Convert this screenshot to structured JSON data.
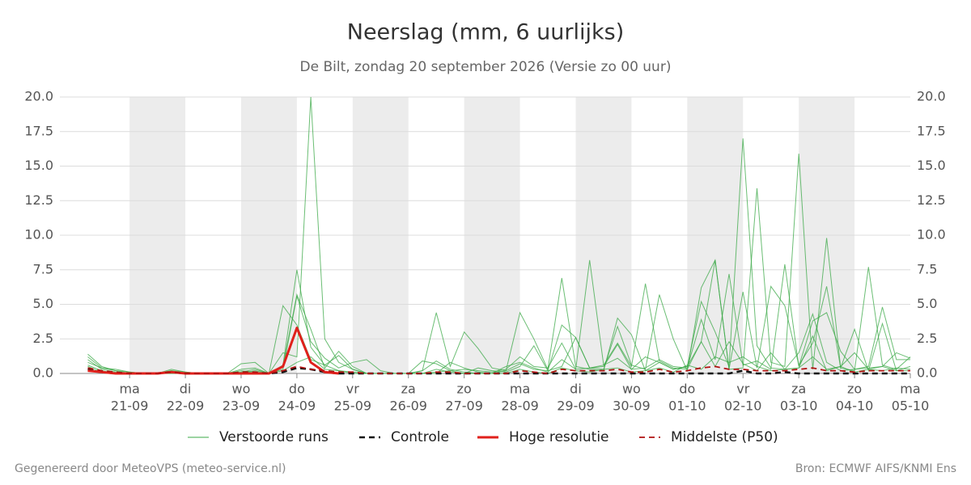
{
  "chart_data": {
    "type": "line",
    "title": "Neerslag (mm, 6 uurlijks)",
    "subtitle": "De Bilt, zondag 20 september 2026 (Versie zo 00 uur)",
    "x": [
      -0.75,
      -0.5,
      -0.25,
      0,
      0.25,
      0.5,
      0.75,
      1,
      1.25,
      1.5,
      1.75,
      2,
      2.25,
      2.5,
      2.75,
      3,
      3.25,
      3.5,
      3.75,
      4,
      4.25,
      4.5,
      4.75,
      5,
      5.25,
      5.5,
      5.75,
      6,
      6.25,
      6.5,
      6.75,
      7,
      7.25,
      7.5,
      7.75,
      8,
      8.25,
      8.5,
      8.75,
      9,
      9.25,
      9.5,
      9.75,
      10,
      10.25,
      10.5,
      10.75,
      11,
      11.25,
      11.5,
      11.75,
      12,
      12.25,
      12.5,
      12.75,
      13,
      13.25,
      13.5,
      13.75,
      14
    ],
    "xlim": [
      -1.25,
      14
    ],
    "xticks": [
      {
        "value": 0,
        "label": "ma",
        "date": "21-09"
      },
      {
        "value": 1,
        "label": "di",
        "date": "22-09"
      },
      {
        "value": 2,
        "label": "wo",
        "date": "23-09"
      },
      {
        "value": 3,
        "label": "do",
        "date": "24-09"
      },
      {
        "value": 4,
        "label": "vr",
        "date": "25-09"
      },
      {
        "value": 5,
        "label": "za",
        "date": "26-09"
      },
      {
        "value": 6,
        "label": "zo",
        "date": "27-09"
      },
      {
        "value": 7,
        "label": "ma",
        "date": "28-09"
      },
      {
        "value": 8,
        "label": "di",
        "date": "29-09"
      },
      {
        "value": 9,
        "label": "wo",
        "date": "30-09"
      },
      {
        "value": 10,
        "label": "do",
        "date": "01-10"
      },
      {
        "value": 11,
        "label": "vr",
        "date": "02-10"
      },
      {
        "value": 12,
        "label": "za",
        "date": "03-10"
      },
      {
        "value": 13,
        "label": "zo",
        "date": "04-10"
      },
      {
        "value": 14,
        "label": "ma",
        "date": "05-10"
      }
    ],
    "ylim": [
      0,
      20
    ],
    "yticks": [
      {
        "value": 0,
        "label": "0.0"
      },
      2.5,
      {
        "value": 5,
        "label": "5.0"
      },
      7.5,
      {
        "value": 10,
        "label": "10.0"
      },
      12.5,
      {
        "value": 15,
        "label": "15.0"
      },
      17.5,
      {
        "value": 20,
        "label": "20.0"
      }
    ],
    "grid": true,
    "ensemble": {
      "name": "Verstoorde runs",
      "color": "#3aa845",
      "members": [
        [
          1.4,
          0.5,
          0.2,
          0.1,
          0,
          0,
          0.3,
          0.1,
          0,
          0,
          0,
          0.7,
          0.8,
          0,
          1.5,
          1.2,
          20.0,
          2.5,
          0.8,
          0.3,
          0,
          0,
          0,
          0,
          0.2,
          4.4,
          0.5,
          3.0,
          1.8,
          0.4,
          0.2,
          4.4,
          2.5,
          0.3,
          6.9,
          0.5,
          0.3,
          0.2,
          4.0,
          2.8,
          0.2,
          0.8,
          0.3,
          0.5,
          5.2,
          3.0,
          0.5,
          17.0,
          2.0,
          0.4,
          0.3,
          1.5,
          4.3,
          0.8,
          0.2,
          0.3,
          0.5,
          4.8,
          1.0,
          1.0
        ],
        [
          1.0,
          0.3,
          0.1,
          0,
          0,
          0,
          0.2,
          0,
          0,
          0,
          0,
          0.3,
          0.4,
          0,
          4.9,
          3.5,
          1.0,
          0.6,
          0.2,
          0,
          0,
          0,
          0,
          0,
          0.9,
          0.7,
          0.2,
          0.3,
          0.2,
          0.1,
          0.3,
          1.2,
          0.5,
          0.4,
          2.2,
          0.3,
          8.2,
          0.6,
          2.2,
          0.5,
          6.5,
          0.9,
          0.4,
          0.3,
          2.3,
          8.2,
          0.3,
          0.4,
          13.4,
          0.8,
          0.5,
          15.9,
          0.3,
          9.8,
          0.4,
          0.2,
          7.7,
          0.6,
          0.3,
          1.2
        ],
        [
          0.8,
          0.4,
          0.2,
          0,
          0,
          0,
          0,
          0,
          0,
          0,
          0,
          0,
          0.2,
          0,
          0.6,
          7.5,
          1.9,
          0.6,
          1.3,
          0.3,
          0,
          0,
          0,
          0,
          0,
          0.3,
          0.1,
          0,
          0.4,
          0.2,
          0.1,
          0.5,
          2.0,
          0.2,
          3.5,
          2.6,
          0.4,
          0.3,
          3.4,
          0.6,
          0.3,
          5.7,
          2.5,
          0.2,
          6.2,
          8.2,
          0.3,
          5.9,
          0.4,
          6.3,
          4.9,
          0.6,
          2.2,
          6.3,
          0.4,
          3.2,
          0.2,
          3.6,
          0.2,
          0.5
        ],
        [
          0.6,
          0.2,
          0,
          0,
          0,
          0,
          0.1,
          0,
          0,
          0,
          0,
          0.2,
          0.1,
          0,
          0.3,
          5.6,
          2.3,
          1.1,
          0.4,
          0.8,
          1.0,
          0.2,
          0,
          0,
          0,
          0,
          0.8,
          0.4,
          0.1,
          0,
          0.2,
          0.7,
          0.3,
          0.2,
          0.5,
          2.6,
          0.4,
          0.6,
          1.1,
          0.3,
          0.4,
          1.0,
          0.5,
          0.4,
          3.9,
          1.0,
          7.2,
          0.6,
          0.9,
          0.3,
          7.9,
          0.5,
          3.8,
          4.4,
          1.6,
          0.3,
          0.4,
          0.5,
          1.5,
          1.1
        ],
        [
          1.2,
          0.4,
          0.3,
          0.1,
          0,
          0,
          0.2,
          0.1,
          0,
          0,
          0,
          0.1,
          0.3,
          0,
          0.5,
          5.7,
          3.2,
          0.4,
          1.6,
          0.5,
          0,
          0,
          0,
          0,
          0.2,
          0.9,
          0.3,
          0.1,
          0,
          0,
          0.5,
          0.8,
          0.4,
          0.1,
          1.0,
          0.3,
          0.4,
          0.5,
          2.1,
          0.3,
          1.2,
          0.8,
          0.3,
          0.5,
          2.3,
          0.5,
          2.3,
          0.7,
          0.2,
          1.5,
          0.3,
          0.4,
          2.7,
          0.2,
          0.5,
          1.5,
          0.3,
          0.2,
          0.4,
          0.3
        ],
        [
          0.5,
          0.1,
          0,
          0,
          0,
          0,
          0,
          0,
          0,
          0,
          0,
          0,
          0,
          0,
          0.2,
          0.8,
          1.2,
          0.3,
          0.2,
          0.1,
          0,
          0,
          0,
          0,
          0,
          0.1,
          0.2,
          0,
          0,
          0,
          0,
          0.3,
          0.1,
          0,
          0.4,
          0.2,
          0.1,
          0.3,
          0.4,
          0.1,
          0.2,
          0.4,
          0.1,
          0.6,
          0.3,
          1.2,
          0.8,
          1.2,
          0.5,
          0.2,
          0.3,
          0.4,
          1.2,
          0.3,
          0.5,
          0.1,
          0.3,
          0.5,
          0.2,
          0.2
        ]
      ]
    },
    "series": [
      {
        "name": "Controle",
        "color": "#111111",
        "dashed": true,
        "width": 2.5,
        "values": [
          0.3,
          0.1,
          0,
          0,
          0,
          0,
          0.1,
          0,
          0,
          0,
          0,
          0,
          0,
          0,
          0.1,
          0.4,
          0.3,
          0.1,
          0,
          0,
          0,
          0,
          0,
          0,
          0,
          0,
          0,
          0,
          0,
          0,
          0,
          0,
          0,
          0,
          0,
          0,
          0,
          0,
          0,
          0,
          0,
          0,
          0,
          0,
          0,
          0,
          0,
          0.2,
          0,
          0,
          0.1,
          0,
          0,
          0,
          0,
          0,
          0,
          0,
          0,
          0
        ]
      },
      {
        "name": "Hoge resolutie",
        "color": "#e0201b",
        "dashed": false,
        "width": 3,
        "values": [
          0.2,
          0.1,
          0,
          0,
          0,
          0,
          0.1,
          0,
          0,
          0,
          0,
          0,
          0,
          0,
          0.5,
          3.3,
          0.8,
          0.1,
          0,
          null,
          null,
          null,
          null,
          null,
          null,
          null,
          null,
          null,
          null,
          null,
          null,
          null,
          null,
          null,
          null,
          null,
          null,
          null,
          null,
          null,
          null,
          null,
          null,
          null,
          null,
          null,
          null,
          null,
          null,
          null,
          null,
          null,
          null,
          null,
          null,
          null,
          null,
          null,
          null,
          null
        ]
      },
      {
        "name": "Middelste (P50)",
        "color": "#b01010",
        "dashed": true,
        "width": 1.8,
        "values": [
          0.4,
          0.2,
          0.1,
          0,
          0,
          0,
          0.1,
          0,
          0,
          0,
          0,
          0.1,
          0.1,
          0,
          0.2,
          0.5,
          0.3,
          0.2,
          0.1,
          0.1,
          0,
          0,
          0,
          0,
          0,
          0.1,
          0.1,
          0,
          0,
          0,
          0,
          0.2,
          0.1,
          0,
          0.3,
          0.2,
          0.2,
          0.2,
          0.3,
          0.1,
          0.1,
          0.3,
          0.1,
          0.2,
          0.4,
          0.5,
          0.3,
          0.3,
          0.2,
          0.2,
          0.2,
          0.3,
          0.4,
          0.2,
          0.2,
          0.1,
          0.2,
          0.2,
          0.2,
          0.2
        ]
      }
    ]
  },
  "footer": {
    "left": "Gegenereerd door MeteoVPS (meteo-service.nl)",
    "right": "Bron: ECMWF AIFS/KNMI Ens"
  }
}
